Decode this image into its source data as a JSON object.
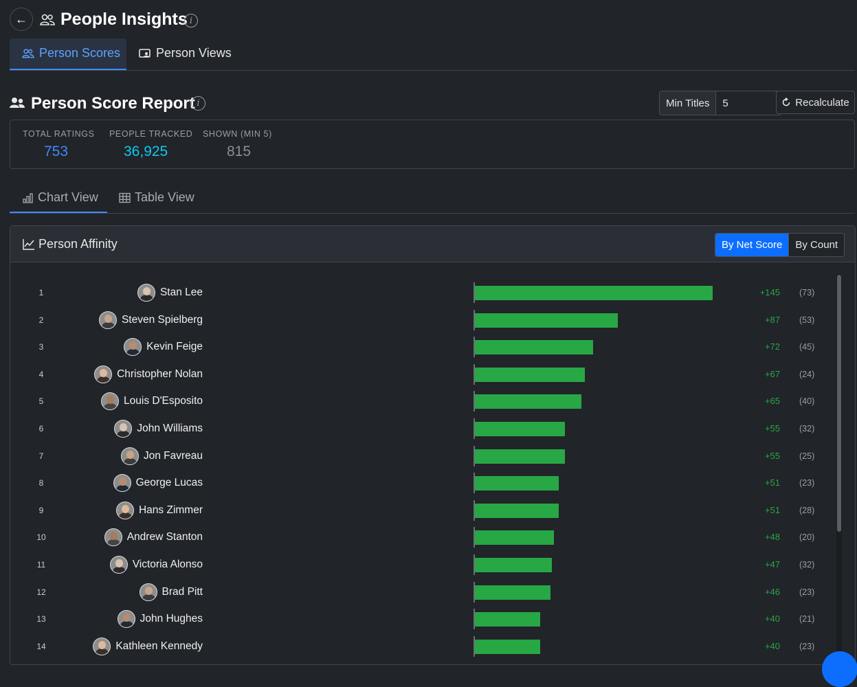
{
  "header": {
    "title": "People Insights",
    "back_icon": "arrow-left-icon",
    "info_icon": "info-icon"
  },
  "tabs": [
    {
      "label": "Person Scores",
      "icon": "people-icon",
      "active": true
    },
    {
      "label": "Person Views",
      "icon": "screen-person-icon",
      "active": false
    }
  ],
  "report": {
    "title": "Person Score Report",
    "min_titles_label": "Min Titles",
    "min_titles_value": "5",
    "recalculate_label": "Recalculate"
  },
  "stats": [
    {
      "label": "TOTAL RATINGS",
      "value": "753",
      "color": "#3d8bfd"
    },
    {
      "label": "PEOPLE TRACKED",
      "value": "36,925",
      "color": "#0dcaf0"
    },
    {
      "label": "SHOWN (MIN 5)",
      "value": "815",
      "color": "#8a9096"
    }
  ],
  "subtabs": [
    {
      "label": "Chart View",
      "icon": "bar-chart-icon",
      "active": true
    },
    {
      "label": "Table View",
      "icon": "table-icon",
      "active": false
    }
  ],
  "panel": {
    "title": "Person Affinity",
    "toggle": {
      "on": "By Net Score",
      "off": "By Count"
    }
  },
  "colors": {
    "accent": "#3d8bfd",
    "bar": "#28a745",
    "background": "#212429"
  },
  "chart_data": {
    "type": "bar",
    "orientation": "horizontal",
    "max_value": 145,
    "rows": [
      {
        "rank": "1",
        "name": "Stan Lee",
        "value": 145,
        "score": "+145",
        "count": "(73)"
      },
      {
        "rank": "2",
        "name": "Steven Spielberg",
        "value": 87,
        "score": "+87",
        "count": "(53)"
      },
      {
        "rank": "3",
        "name": "Kevin Feige",
        "value": 72,
        "score": "+72",
        "count": "(45)"
      },
      {
        "rank": "4",
        "name": "Christopher Nolan",
        "value": 67,
        "score": "+67",
        "count": "(24)"
      },
      {
        "rank": "5",
        "name": "Louis D'Esposito",
        "value": 65,
        "score": "+65",
        "count": "(40)"
      },
      {
        "rank": "6",
        "name": "John Williams",
        "value": 55,
        "score": "+55",
        "count": "(32)"
      },
      {
        "rank": "7",
        "name": "Jon Favreau",
        "value": 55,
        "score": "+55",
        "count": "(25)"
      },
      {
        "rank": "8",
        "name": "George Lucas",
        "value": 51,
        "score": "+51",
        "count": "(23)"
      },
      {
        "rank": "9",
        "name": "Hans Zimmer",
        "value": 51,
        "score": "+51",
        "count": "(28)"
      },
      {
        "rank": "10",
        "name": "Andrew Stanton",
        "value": 48,
        "score": "+48",
        "count": "(20)"
      },
      {
        "rank": "11",
        "name": "Victoria Alonso",
        "value": 47,
        "score": "+47",
        "count": "(32)"
      },
      {
        "rank": "12",
        "name": "Brad Pitt",
        "value": 46,
        "score": "+46",
        "count": "(23)"
      },
      {
        "rank": "13",
        "name": "John Hughes",
        "value": 40,
        "score": "+40",
        "count": "(21)"
      },
      {
        "rank": "14",
        "name": "Kathleen Kennedy",
        "value": 40,
        "score": "+40",
        "count": "(23)"
      }
    ]
  }
}
